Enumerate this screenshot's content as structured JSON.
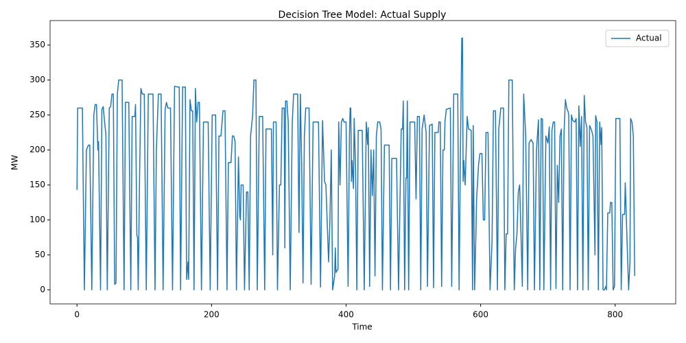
{
  "chart_data": {
    "type": "line",
    "title": "Decision Tree Model: Actual Supply",
    "x_label": "Time",
    "y_label": "MW",
    "x": [
      0,
      1,
      8,
      11,
      14,
      17,
      19,
      22,
      25,
      27,
      29,
      31,
      32,
      35,
      37,
      39,
      41,
      43,
      45,
      48,
      50,
      52,
      54,
      56,
      58,
      60,
      62,
      67,
      70,
      72,
      77,
      80,
      82,
      86,
      87,
      89,
      90,
      91,
      93,
      95,
      97,
      100,
      103,
      106,
      113,
      116,
      118,
      121,
      125,
      128,
      131,
      133,
      135,
      139,
      142,
      145,
      150,
      152,
      154,
      157,
      161,
      163,
      165,
      166,
      168,
      170,
      172,
      174,
      176,
      178,
      180,
      182,
      185,
      188,
      195,
      198,
      201,
      206,
      209,
      211,
      214,
      217,
      220,
      223,
      225,
      229,
      231,
      233,
      235,
      237,
      240,
      242,
      243,
      244,
      247,
      249,
      252,
      254,
      256,
      258,
      261,
      263,
      266,
      268,
      271,
      276,
      279,
      281,
      289,
      291,
      292,
      296,
      298,
      301,
      303,
      305,
      308,
      309,
      310,
      312,
      314,
      317,
      320,
      322,
      328,
      330,
      332,
      334,
      336,
      338,
      340,
      345,
      348,
      351,
      359,
      362,
      365,
      368,
      370,
      374,
      376,
      378,
      380,
      383,
      384,
      385,
      388,
      389,
      391,
      393,
      395,
      397,
      400,
      403,
      405,
      406,
      407,
      408,
      409,
      411,
      412,
      414,
      416,
      418,
      424,
      427,
      430,
      432,
      433,
      435,
      437,
      439,
      441,
      443,
      445,
      447,
      450,
      452,
      454,
      457,
      464,
      466,
      468,
      475,
      478,
      480,
      482,
      484,
      485,
      487,
      489,
      490,
      491,
      493,
      495,
      502,
      504,
      506,
      509,
      511,
      513,
      516,
      519,
      521,
      524,
      528,
      530,
      532,
      537,
      538,
      540,
      542,
      544,
      546,
      547,
      549,
      555,
      557,
      560,
      566,
      568,
      570,
      572,
      573,
      574,
      575,
      577,
      579,
      580,
      582,
      586,
      588,
      589,
      591,
      593,
      594,
      597,
      599,
      602,
      604,
      606,
      608,
      611,
      614,
      617,
      619,
      622,
      625,
      627,
      630,
      634,
      636,
      638,
      640,
      642,
      647,
      650,
      652,
      654,
      656,
      658,
      660,
      662,
      664,
      667,
      670,
      672,
      675,
      678,
      680,
      683,
      686,
      688,
      690,
      692,
      694,
      697,
      700,
      702,
      704,
      706,
      708,
      710,
      712,
      714,
      716,
      718,
      720,
      722,
      724,
      726,
      728,
      730,
      731,
      733,
      735,
      737,
      740,
      742,
      744,
      746,
      748,
      750,
      752,
      754,
      756,
      758,
      760,
      762,
      765,
      767,
      770,
      771,
      773,
      775,
      777,
      779,
      780,
      782,
      784,
      786,
      787,
      789,
      792,
      793,
      795,
      797,
      799,
      801,
      807,
      809,
      811,
      814,
      815,
      818,
      820,
      822,
      823,
      825,
      827,
      829
    ],
    "series": [
      {
        "name": "Actual",
        "color": "#1f77b4",
        "values": [
          143,
          260,
          260,
          0,
          200,
          207,
          207,
          0,
          250,
          265,
          265,
          200,
          212,
          0,
          258,
          262,
          240,
          222,
          0,
          260,
          262,
          280,
          280,
          8,
          10,
          280,
          300,
          300,
          0,
          268,
          268,
          0,
          248,
          248,
          265,
          78,
          75,
          0,
          160,
          288,
          280,
          280,
          0,
          280,
          280,
          0,
          200,
          280,
          280,
          0,
          258,
          268,
          260,
          260,
          0,
          291,
          290,
          290,
          0,
          290,
          290,
          15,
          40,
          15,
          272,
          256,
          256,
          0,
          288,
          240,
          268,
          268,
          0,
          240,
          240,
          0,
          250,
          250,
          0,
          220,
          220,
          256,
          256,
          0,
          182,
          182,
          220,
          220,
          212,
          0,
          190,
          105,
          100,
          150,
          150,
          0,
          140,
          140,
          0,
          220,
          248,
          300,
          300,
          0,
          248,
          248,
          0,
          230,
          230,
          50,
          240,
          240,
          0,
          150,
          150,
          260,
          260,
          60,
          270,
          270,
          240,
          0,
          240,
          280,
          280,
          82,
          280,
          180,
          10,
          220,
          260,
          260,
          8,
          240,
          240,
          4,
          242,
          155,
          150,
          40,
          100,
          200,
          0,
          20,
          60,
          25,
          30,
          240,
          150,
          240,
          245,
          240,
          240,
          5,
          220,
          260,
          260,
          155,
          185,
          145,
          245,
          180,
          0,
          228,
          228,
          0,
          240,
          208,
          232,
          5,
          200,
          135,
          200,
          20,
          220,
          240,
          240,
          230,
          0,
          207,
          207,
          0,
          188,
          188,
          0,
          120,
          230,
          230,
          270,
          0,
          160,
          160,
          270,
          0,
          240,
          240,
          130,
          248,
          248,
          0,
          230,
          250,
          225,
          5,
          235,
          237,
          3,
          225,
          225,
          240,
          240,
          5,
          200,
          200,
          240,
          258,
          260,
          5,
          280,
          280,
          0,
          200,
          360,
          360,
          155,
          185,
          150,
          215,
          248,
          230,
          228,
          0,
          235,
          0,
          80,
          130,
          180,
          195,
          195,
          100,
          100,
          225,
          225,
          0,
          70,
          256,
          256,
          0,
          230,
          260,
          260,
          0,
          80,
          80,
          300,
          300,
          0,
          60,
          80,
          140,
          150,
          80,
          5,
          280,
          220,
          0,
          210,
          215,
          210,
          0,
          200,
          243,
          0,
          245,
          244,
          0,
          220,
          210,
          233,
          0,
          228,
          240,
          240,
          2,
          178,
          125,
          220,
          230,
          0,
          225,
          272,
          260,
          255,
          250,
          0,
          250,
          242,
          240,
          245,
          0,
          263,
          205,
          248,
          0,
          278,
          240,
          232,
          0,
          235,
          228,
          220,
          50,
          249,
          240,
          0,
          240,
          208,
          232,
          0,
          0,
          5,
          0,
          110,
          110,
          125,
          125,
          0,
          5,
          245,
          245,
          0,
          108,
          108,
          153,
          60,
          0,
          40,
          245,
          240,
          220,
          20
        ]
      }
    ],
    "xlim": [
      -40,
      890
    ],
    "ylim": [
      -20,
      385
    ],
    "xticks": [
      0,
      200,
      400,
      600,
      800
    ],
    "yticks": [
      0,
      50,
      100,
      150,
      200,
      250,
      300,
      350
    ],
    "grid": false,
    "legend": "upper right"
  }
}
